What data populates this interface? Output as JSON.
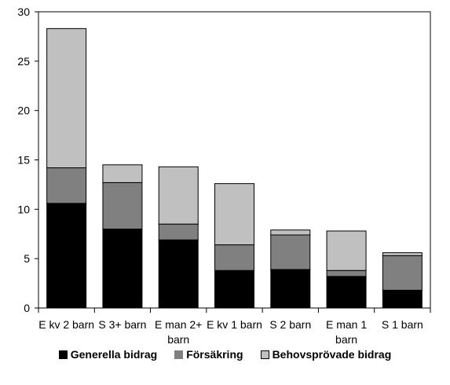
{
  "chart_data": {
    "type": "bar",
    "stacked": true,
    "categories": [
      "E kv 2 barn",
      "S 3+ barn",
      "E man 2+ barn",
      "E kv 1 barn",
      "S 2 barn",
      "E man 1 barn",
      "S 1 barn"
    ],
    "category_lines": [
      [
        "E kv 2 barn"
      ],
      [
        "S 3+ barn"
      ],
      [
        "E man 2+",
        "barn"
      ],
      [
        "E kv 1 barn"
      ],
      [
        "S 2 barn"
      ],
      [
        "E man 1",
        "barn"
      ],
      [
        "S 1 barn"
      ]
    ],
    "series": [
      {
        "name": "Generella bidrag",
        "color": "#000000",
        "values": [
          10.6,
          8.0,
          6.9,
          3.8,
          3.9,
          3.2,
          1.8
        ]
      },
      {
        "name": "Försäkring",
        "color": "#808080",
        "values": [
          3.6,
          4.7,
          1.6,
          2.6,
          3.5,
          0.6,
          3.5
        ]
      },
      {
        "name": "Behovsprövade bidrag",
        "color": "#c0c0c0",
        "values": [
          14.1,
          1.8,
          5.8,
          6.2,
          0.5,
          4.0,
          0.3
        ]
      }
    ],
    "ylim": [
      0,
      30
    ],
    "yticks": [
      0,
      5,
      10,
      15,
      20,
      25,
      30
    ],
    "title": "",
    "xlabel": "",
    "ylabel": "",
    "legend_position": "bottom",
    "grid": false
  }
}
